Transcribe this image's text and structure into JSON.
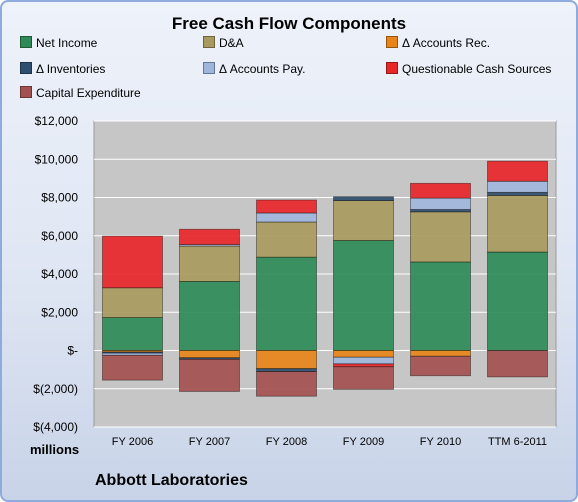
{
  "chart_data": {
    "type": "bar",
    "stacked": true,
    "title": "Free Cash Flow Components",
    "subtitle": "Abbott Laboratories",
    "ylabel": "millions",
    "ylim": [
      -4000,
      12000
    ],
    "yticks": [
      12000,
      10000,
      8000,
      6000,
      4000,
      2000,
      0,
      -2000,
      -4000
    ],
    "ytick_labels": [
      "$12,000",
      "$10,000",
      "$8,000",
      "$6,000",
      "$4,000",
      "$2,000",
      "$-",
      "$(2,000)",
      "$(4,000)"
    ],
    "grid": true,
    "legend_position": "top",
    "categories": [
      "FY 2006",
      "FY 2007",
      "FY 2008",
      "FY 2009",
      "FY 2010",
      "TTM 6-2011"
    ],
    "series": [
      {
        "name": "Net Income",
        "color": "#2e8b57",
        "values": [
          1720,
          3610,
          4880,
          5750,
          4630,
          5150
        ]
      },
      {
        "name": "D&A",
        "color": "#a89a5e",
        "values": [
          1560,
          1850,
          1840,
          2090,
          2620,
          2960
        ]
      },
      {
        "name": "Δ Accounts Rec.",
        "color": "#e8841a",
        "values": [
          -80,
          -380,
          -950,
          -350,
          -300,
          0
        ]
      },
      {
        "name": "Δ Inventories",
        "color": "#2f4f6f",
        "values": [
          -60,
          -80,
          -150,
          200,
          120,
          160
        ]
      },
      {
        "name": "Δ Accounts Pay.",
        "color": "#9fb6dc",
        "values": [
          -110,
          80,
          470,
          -350,
          600,
          580
        ]
      },
      {
        "name": "Questionable Cash Sources",
        "color": "#e8262a",
        "values": [
          2700,
          800,
          680,
          -150,
          770,
          1050
        ]
      },
      {
        "name": "Capital Expenditure",
        "color": "#a35050",
        "values": [
          -1300,
          -1680,
          -1290,
          -1180,
          -1020,
          -1380
        ]
      }
    ]
  }
}
